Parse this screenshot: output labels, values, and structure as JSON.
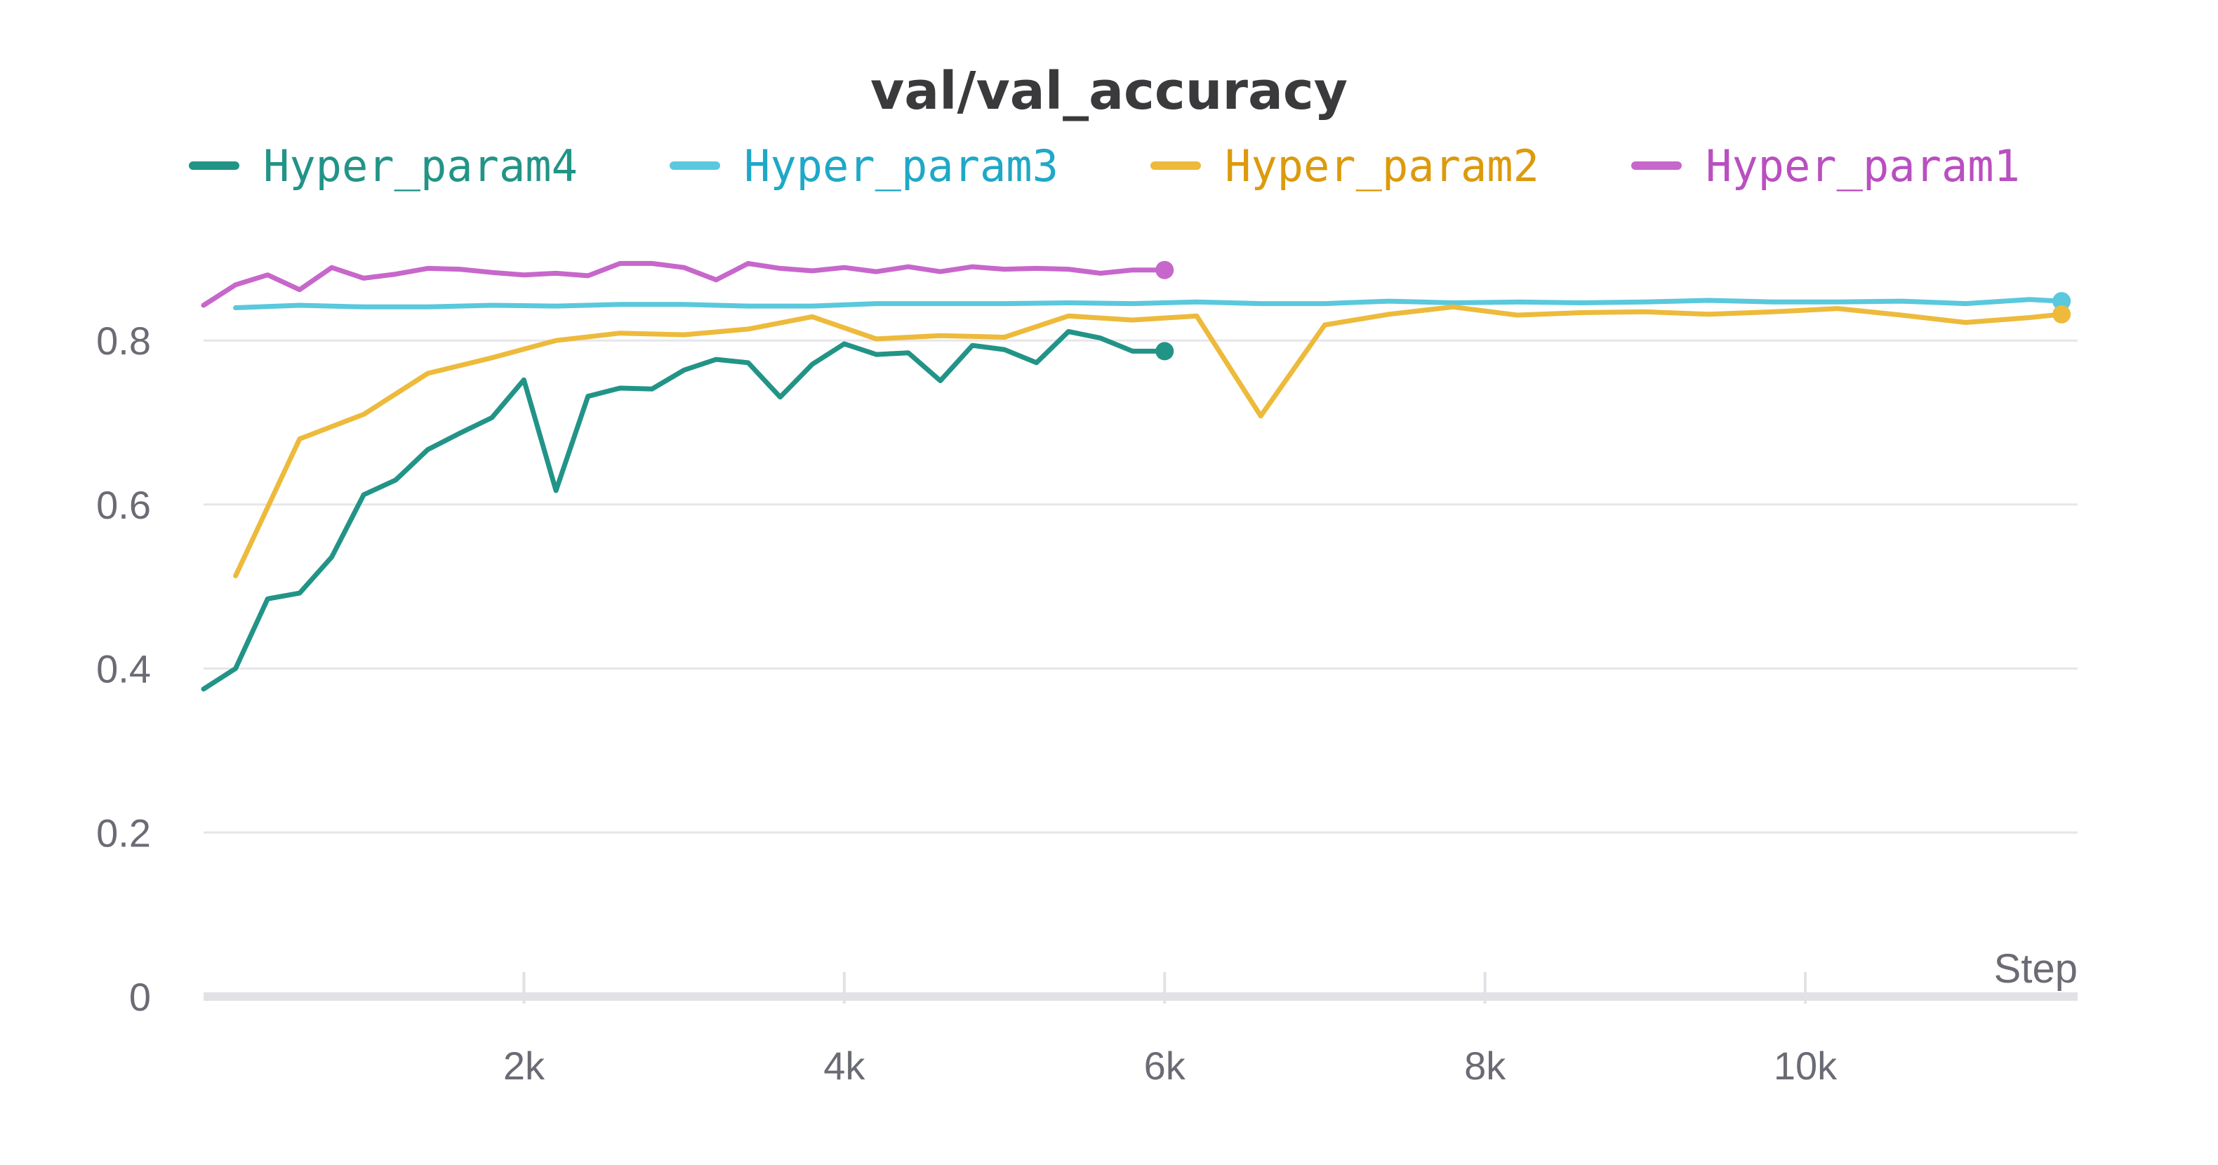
{
  "chart_data": {
    "type": "line",
    "title": "val/val_accuracy",
    "xlabel": "Step",
    "ylabel": "",
    "xlim": [
      0,
      11700
    ],
    "ylim": [
      0,
      0.92
    ],
    "yticks": [
      0,
      0.2,
      0.4,
      0.6,
      0.8
    ],
    "ytick_labels": [
      "0",
      "0.2",
      "0.4",
      "0.6",
      "0.8"
    ],
    "xticks": [
      2000,
      4000,
      6000,
      8000,
      10000
    ],
    "xtick_labels": [
      "2k",
      "4k",
      "6k",
      "8k",
      "10k"
    ],
    "grid": true,
    "legend_position": "top",
    "series": [
      {
        "name": "Hyper_param4",
        "color": "#229487",
        "text_color": "#229487",
        "x": [
          0,
          200,
          400,
          600,
          800,
          1000,
          1200,
          1400,
          1600,
          1800,
          2000,
          2200,
          2400,
          2600,
          2800,
          3000,
          3200,
          3400,
          3600,
          3800,
          4000,
          4200,
          4400,
          4600,
          4800,
          5000,
          5200,
          5400,
          5600,
          5800,
          6000
        ],
        "y": [
          0.375,
          0.4,
          0.485,
          0.492,
          0.536,
          0.612,
          0.63,
          0.667,
          0.687,
          0.706,
          0.752,
          0.617,
          0.732,
          0.742,
          0.741,
          0.764,
          0.777,
          0.773,
          0.731,
          0.771,
          0.796,
          0.783,
          0.785,
          0.751,
          0.794,
          0.789,
          0.773,
          0.811,
          0.803,
          0.787,
          0.787
        ]
      },
      {
        "name": "Hyper_param3",
        "color": "#5ac8dd",
        "text_color": "#1fa8c7",
        "x": [
          200,
          600,
          1000,
          1400,
          1800,
          2200,
          2600,
          3000,
          3400,
          3800,
          4200,
          4600,
          5000,
          5400,
          5800,
          6200,
          6600,
          7000,
          7400,
          7800,
          8200,
          8600,
          9000,
          9400,
          9800,
          10200,
          10600,
          11000,
          11400,
          11600
        ],
        "y": [
          0.84,
          0.843,
          0.841,
          0.841,
          0.843,
          0.842,
          0.844,
          0.844,
          0.842,
          0.842,
          0.845,
          0.845,
          0.845,
          0.846,
          0.845,
          0.847,
          0.845,
          0.845,
          0.848,
          0.846,
          0.847,
          0.846,
          0.847,
          0.849,
          0.847,
          0.847,
          0.848,
          0.845,
          0.85,
          0.848
        ]
      },
      {
        "name": "Hyper_param2",
        "color": "#edba3b",
        "text_color": "#dc9a0c",
        "x": [
          200,
          600,
          1000,
          1400,
          1800,
          2200,
          2600,
          3000,
          3400,
          3800,
          4200,
          4600,
          5000,
          5400,
          5800,
          6200,
          6600,
          7000,
          7400,
          7800,
          8200,
          8600,
          9000,
          9400,
          9800,
          10200,
          10600,
          11000,
          11400,
          11600
        ],
        "y": [
          0.513,
          0.68,
          0.71,
          0.76,
          0.779,
          0.8,
          0.809,
          0.807,
          0.814,
          0.829,
          0.802,
          0.806,
          0.804,
          0.83,
          0.825,
          0.83,
          0.708,
          0.819,
          0.832,
          0.841,
          0.831,
          0.834,
          0.835,
          0.832,
          0.835,
          0.839,
          0.831,
          0.822,
          0.828,
          0.832
        ]
      },
      {
        "name": "Hyper_param1",
        "color": "#c767cb",
        "text_color": "#b94fc0",
        "x": [
          0,
          200,
          400,
          600,
          800,
          1000,
          1200,
          1400,
          1600,
          1800,
          2000,
          2200,
          2400,
          2600,
          2800,
          3000,
          3200,
          3400,
          3600,
          3800,
          4000,
          4200,
          4400,
          4600,
          4800,
          5000,
          5200,
          5400,
          5600,
          5800,
          6000
        ],
        "y": [
          0.843,
          0.868,
          0.88,
          0.862,
          0.889,
          0.876,
          0.881,
          0.888,
          0.887,
          0.883,
          0.88,
          0.882,
          0.879,
          0.894,
          0.894,
          0.889,
          0.874,
          0.894,
          0.888,
          0.885,
          0.889,
          0.884,
          0.89,
          0.884,
          0.89,
          0.887,
          0.888,
          0.887,
          0.882,
          0.886,
          0.886
        ]
      }
    ]
  }
}
